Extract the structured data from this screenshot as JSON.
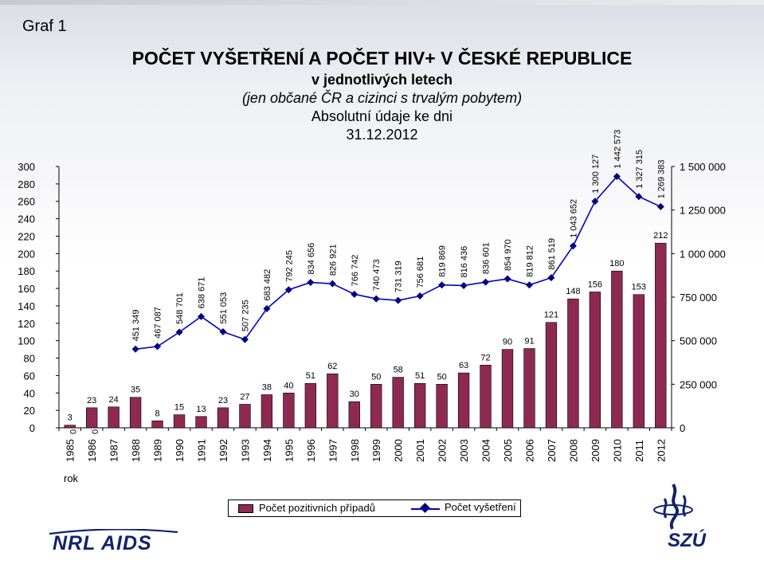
{
  "header": {
    "graf_label": "Graf 1",
    "title": "POČET VYŠETŘENÍ A POČET HIV+ V ČESKÉ REPUBLICE",
    "subtitle_1": "v jednotlivých letech",
    "subtitle_2": "(jen občané ČR a cizinci s trvalým pobytem)",
    "subtitle_3": "Absolutní údaje ke dni",
    "subtitle_4": "31.12.2012"
  },
  "colors": {
    "bar_fill": "#8e2a52",
    "line_color": "#0000cc",
    "marker_color": "#000080",
    "logo_color": "#12236b"
  },
  "chart_data": {
    "type": "bar+line",
    "categories": [
      "1985",
      "1986",
      "1987",
      "1988",
      "1989",
      "1990",
      "1991",
      "1992",
      "1993",
      "1994",
      "1995",
      "1996",
      "1997",
      "1998",
      "1999",
      "2000",
      "2001",
      "2002",
      "2003",
      "2004",
      "2005",
      "2006",
      "2007",
      "2008",
      "2009",
      "2010",
      "2011",
      "2012"
    ],
    "xlabel": "rok",
    "y_left": {
      "min": 0,
      "max": 300,
      "step": 20,
      "ticks": [
        "0",
        "20",
        "40",
        "60",
        "80",
        "100",
        "120",
        "140",
        "160",
        "180",
        "200",
        "220",
        "240",
        "260",
        "280",
        "300"
      ]
    },
    "y_right": {
      "min": 0,
      "max": 1500000,
      "ticks": [
        "0",
        "250 000",
        "500 000",
        "750 000",
        "1 000 000",
        "1 250 000",
        "1 500 000"
      ]
    },
    "grid": false,
    "legend_position": "bottom",
    "series": [
      {
        "name": "Počet pozitivních případů",
        "type": "bar",
        "axis": "left",
        "values": [
          3,
          23,
          24,
          35,
          8,
          15,
          13,
          23,
          27,
          38,
          40,
          51,
          62,
          30,
          50,
          58,
          51,
          50,
          63,
          72,
          90,
          91,
          121,
          148,
          156,
          180,
          153,
          212
        ],
        "labels": [
          "3",
          "23",
          "24",
          "35",
          "8",
          "15",
          "13",
          "23",
          "27",
          "38",
          "40",
          "51",
          "62",
          "30",
          "50",
          "58",
          "51",
          "50",
          "63",
          "72",
          "90",
          "91",
          "121",
          "148",
          "156",
          "180",
          "153",
          "212"
        ]
      },
      {
        "name": "Počet vyšetření",
        "type": "line",
        "axis": "right",
        "values": [
          null,
          null,
          null,
          451349,
          467087,
          548701,
          638671,
          551053,
          507235,
          683482,
          792245,
          834656,
          826921,
          766742,
          740473,
          731319,
          756681,
          819869,
          816436,
          836601,
          854970,
          819812,
          861519,
          1043652,
          1300127,
          1442573,
          1327315,
          1269383
        ],
        "labels": [
          "",
          "",
          "",
          "451 349",
          "467 087",
          "548 701",
          "638 671",
          "551 053",
          "507 235",
          "683 482",
          "792 245",
          "834 656",
          "826 921",
          "766 742",
          "740 473",
          "731 319",
          "756 681",
          "819 869",
          "816 436",
          "836 601",
          "854 970",
          "819 812",
          "861 519",
          "1 043 652",
          "1 300 127",
          "1 442 573",
          "1 327 315",
          "1 269 383"
        ]
      }
    ],
    "extra_labels": [
      "0",
      "0"
    ]
  },
  "footer": {
    "logo_left": "NRL AIDS",
    "logo_right": "SZÚ"
  }
}
